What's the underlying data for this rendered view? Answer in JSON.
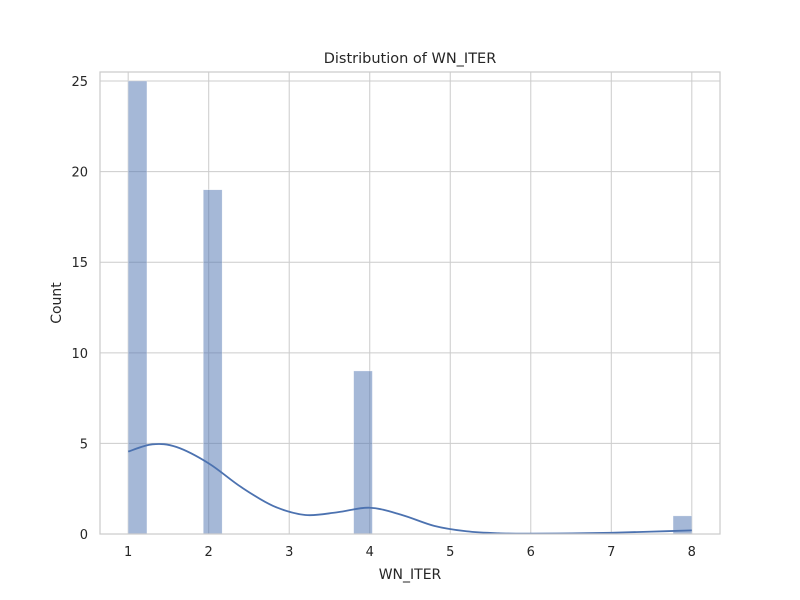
{
  "chart_data": {
    "type": "bar",
    "title": "Distribution of WN_ITER",
    "xlabel": "WN_ITER",
    "ylabel": "Count",
    "xlim": [
      0.65,
      8.35
    ],
    "ylim": [
      0,
      25.5
    ],
    "xticks": [
      "1",
      "2",
      "3",
      "4",
      "5",
      "6",
      "7",
      "8"
    ],
    "yticks": [
      "0",
      "5",
      "10",
      "15",
      "20",
      "25"
    ],
    "grid": true,
    "bin_width": 0.233,
    "bins": [
      {
        "x0": 1.0,
        "x1": 1.233,
        "count": 25
      },
      {
        "x0": 1.933,
        "x1": 2.167,
        "count": 19
      },
      {
        "x0": 3.8,
        "x1": 4.033,
        "count": 9
      },
      {
        "x0": 7.767,
        "x1": 8.0,
        "count": 1
      }
    ],
    "kde": {
      "x": [
        1.0,
        1.3,
        1.6,
        2.0,
        2.4,
        2.8,
        3.2,
        3.6,
        4.0,
        4.4,
        4.8,
        5.2,
        5.6,
        6.0,
        6.5,
        7.0,
        7.5,
        8.0
      ],
      "y": [
        4.55,
        4.95,
        4.8,
        3.9,
        2.6,
        1.55,
        1.05,
        1.2,
        1.45,
        1.05,
        0.45,
        0.15,
        0.04,
        0.02,
        0.03,
        0.07,
        0.13,
        0.2
      ]
    }
  }
}
